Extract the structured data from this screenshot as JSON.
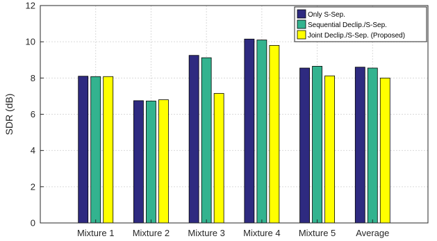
{
  "chart_data": {
    "type": "bar",
    "title": "",
    "xlabel": "",
    "ylabel": "SDR (dB)",
    "ylim": [
      0,
      12
    ],
    "yticks": [
      0,
      2,
      4,
      6,
      8,
      10,
      12
    ],
    "grid": true,
    "legend_position": "top-right",
    "categories": [
      "Mixture 1",
      "Mixture 2",
      "Mixture 3",
      "Mixture 4",
      "Mixture 5",
      "Average"
    ],
    "series": [
      {
        "name": "Only S-Sep.",
        "color": "#2e2a80",
        "values": [
          8.1,
          6.75,
          9.25,
          10.15,
          8.55,
          8.6
        ]
      },
      {
        "name": "Sequential Declip./S-Sep.",
        "color": "#33b38f",
        "values": [
          8.08,
          6.73,
          9.12,
          10.1,
          8.65,
          8.55
        ]
      },
      {
        "name": "Joint Declip./S-Sep. (Proposed)",
        "color": "#ffff00",
        "values": [
          8.08,
          6.8,
          7.15,
          9.8,
          8.12,
          8.0
        ]
      }
    ]
  }
}
